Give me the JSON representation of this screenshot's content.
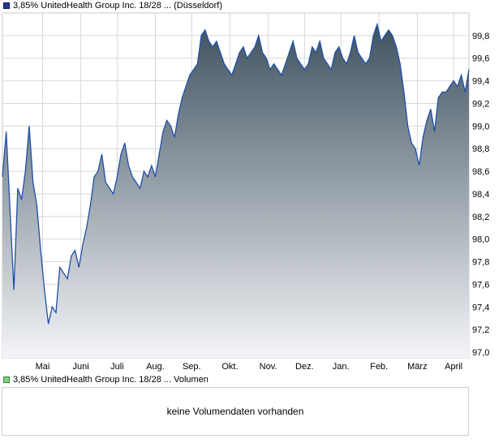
{
  "legend": {
    "price_label": "3,85% UnitedHealth Group Inc. 18/28 ... (Düsseldorf)",
    "volume_label": "3,85% UnitedHealth Group Inc. 18/28 ... Volumen"
  },
  "volume_panel": {
    "message": "keine Volumendaten vorhanden"
  },
  "colors": {
    "line": "#1f4fa8",
    "fill_top": "#3f5260",
    "fill_bottom": "#f4f5f8",
    "grid": "#d8d8d8",
    "frame": "#c8c8c8"
  },
  "chart_data": {
    "type": "area",
    "title": "",
    "xlabel": "",
    "ylabel": "",
    "ylim": [
      96.95,
      100.0
    ],
    "y_ticks": [
      "97,0",
      "97,2",
      "97,4",
      "97,6",
      "97,8",
      "98,0",
      "98,2",
      "98,4",
      "98,6",
      "98,8",
      "99,0",
      "99,2",
      "99,4",
      "99,6",
      "99,8"
    ],
    "y_tick_values": [
      97.0,
      97.2,
      97.4,
      97.6,
      97.8,
      98.0,
      98.2,
      98.4,
      98.6,
      98.8,
      99.0,
      99.2,
      99.4,
      99.6,
      99.8
    ],
    "x_ticks": [
      "Mai",
      "Juni",
      "Juli",
      "Aug.",
      "Sep.",
      "Okt.",
      "Nov.",
      "Dez.",
      "Jan.",
      "Feb.",
      "März",
      "April"
    ],
    "x_tick_positions": [
      1.05,
      2.05,
      3.0,
      4.0,
      4.95,
      5.95,
      6.95,
      7.9,
      8.85,
      9.85,
      10.85,
      11.8
    ],
    "grid": true,
    "legend": "top-left",
    "series": [
      {
        "x": [
          0,
          0.1,
          0.2,
          0.3,
          0.4,
          0.5,
          0.6,
          0.7,
          0.8,
          0.9,
          1.0,
          1.1,
          1.2,
          1.3,
          1.4,
          1.5,
          1.6,
          1.7,
          1.8,
          1.9,
          2.0,
          2.1,
          2.2,
          2.3,
          2.4,
          2.5,
          2.6,
          2.7,
          2.8,
          2.9,
          3.0,
          3.1,
          3.2,
          3.3,
          3.4,
          3.5,
          3.6,
          3.7,
          3.8,
          3.9,
          4.0,
          4.1,
          4.2,
          4.3,
          4.4,
          4.5,
          4.6,
          4.7,
          4.8,
          4.9,
          5.0,
          5.1,
          5.2,
          5.3,
          5.4,
          5.5,
          5.6,
          5.7,
          5.8,
          5.9,
          6.0,
          6.1,
          6.2,
          6.3,
          6.4,
          6.5,
          6.6,
          6.7,
          6.8,
          6.9,
          7.0,
          7.1,
          7.2,
          7.3,
          7.4,
          7.5,
          7.6,
          7.7,
          7.8,
          7.9,
          8.0,
          8.1,
          8.2,
          8.3,
          8.4,
          8.5,
          8.6,
          8.7,
          8.8,
          8.9,
          9.0,
          9.1,
          9.2,
          9.3,
          9.4,
          9.5,
          9.6,
          9.7,
          9.8,
          9.9,
          10.0,
          10.1,
          10.2,
          10.3,
          10.4,
          10.5,
          10.6,
          10.7,
          10.8,
          10.9,
          11.0,
          11.1,
          11.2,
          11.3,
          11.4,
          11.5,
          11.6,
          11.7,
          11.8,
          11.9,
          12.0,
          12.1,
          12.2
        ],
        "values": [
          98.55,
          98.95,
          98.25,
          97.55,
          98.45,
          98.35,
          98.6,
          99.0,
          98.5,
          98.3,
          97.9,
          97.55,
          97.25,
          97.4,
          97.35,
          97.75,
          97.7,
          97.65,
          97.85,
          97.9,
          97.75,
          97.95,
          98.1,
          98.3,
          98.55,
          98.6,
          98.75,
          98.5,
          98.45,
          98.4,
          98.55,
          98.75,
          98.85,
          98.65,
          98.55,
          98.5,
          98.45,
          98.6,
          98.55,
          98.65,
          98.55,
          98.75,
          98.95,
          99.05,
          99.0,
          98.9,
          99.1,
          99.25,
          99.35,
          99.45,
          99.5,
          99.55,
          99.8,
          99.85,
          99.75,
          99.7,
          99.75,
          99.65,
          99.55,
          99.5,
          99.45,
          99.55,
          99.65,
          99.7,
          99.6,
          99.65,
          99.7,
          99.8,
          99.65,
          99.6,
          99.5,
          99.55,
          99.5,
          99.45,
          99.55,
          99.65,
          99.75,
          99.6,
          99.55,
          99.5,
          99.55,
          99.7,
          99.65,
          99.75,
          99.6,
          99.55,
          99.5,
          99.65,
          99.7,
          99.6,
          99.55,
          99.65,
          99.8,
          99.65,
          99.6,
          99.55,
          99.6,
          99.8,
          99.9,
          99.75,
          99.8,
          99.85,
          99.8,
          99.7,
          99.55,
          99.3,
          99.0,
          98.85,
          98.8,
          98.65,
          98.9,
          99.05,
          99.15,
          98.95,
          99.25,
          99.3,
          99.3,
          99.35,
          99.4,
          99.35,
          99.45,
          99.3,
          99.5
        ]
      }
    ]
  }
}
